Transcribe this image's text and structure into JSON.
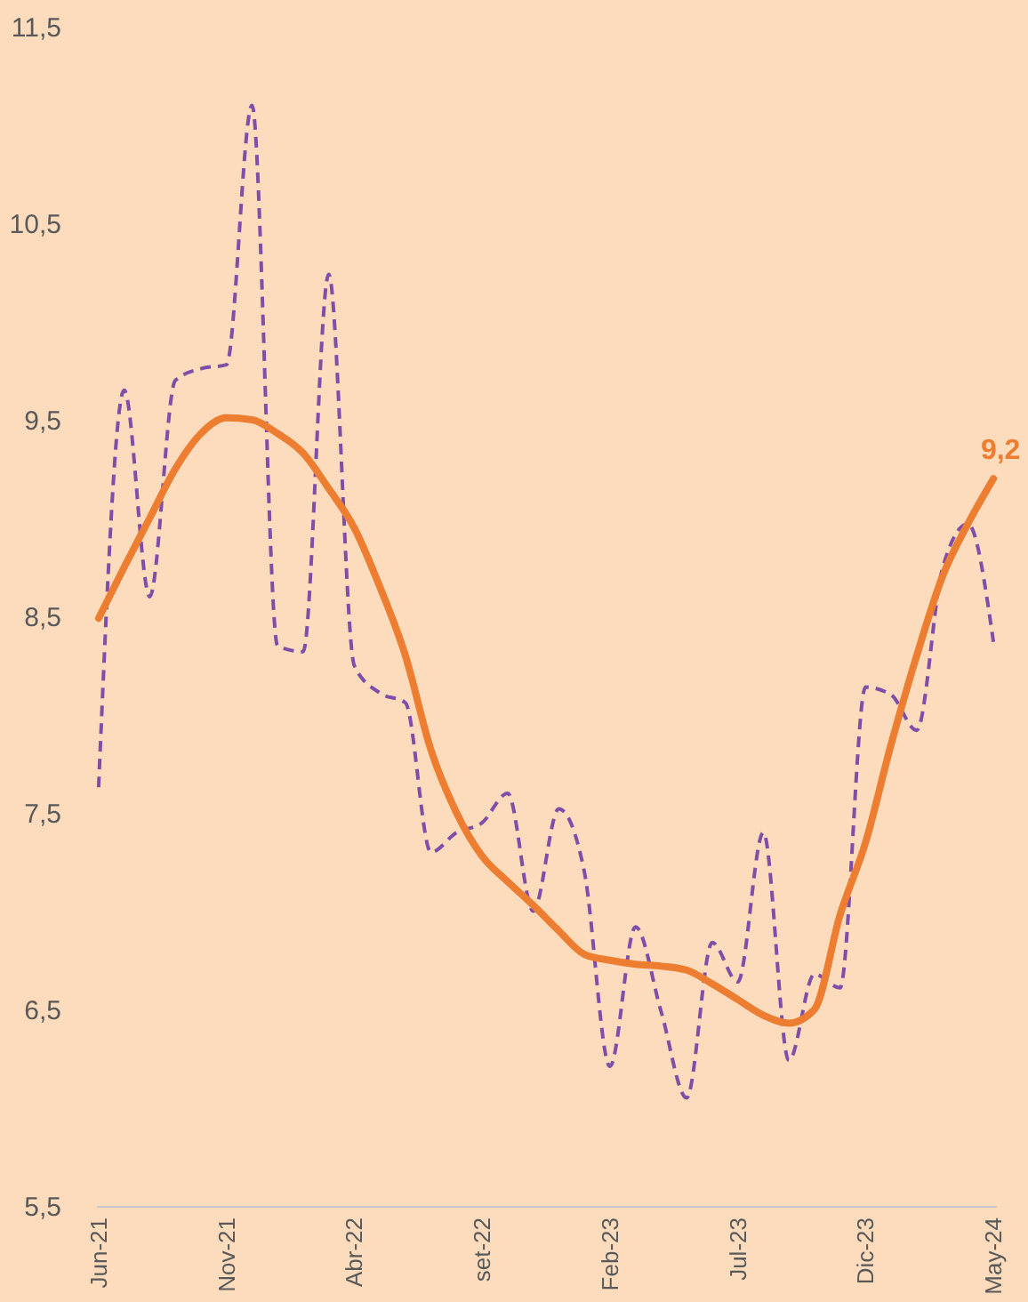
{
  "chart_data": {
    "type": "line",
    "categories": [
      "Jun-21",
      null,
      null,
      null,
      null,
      "Nov-21",
      null,
      null,
      null,
      null,
      "Abr-22",
      null,
      null,
      null,
      null,
      "set-22",
      null,
      null,
      null,
      null,
      "Feb-23",
      null,
      null,
      null,
      null,
      "Jul-23",
      null,
      null,
      null,
      null,
      "Dic-23",
      null,
      null,
      null,
      null,
      "May-24"
    ],
    "series": [
      {
        "color": "#7f4fa8",
        "line_style": "dashed",
        "values": [
          7.63,
          9.65,
          8.6,
          9.7,
          9.76,
          9.78,
          11.1,
          8.35,
          8.32,
          10.24,
          8.25,
          8.11,
          8.06,
          7.3,
          7.4,
          7.45,
          7.6,
          7.0,
          7.52,
          7.2,
          6.21,
          6.92,
          6.49,
          6.05,
          6.84,
          6.64,
          7.4,
          6.24,
          6.68,
          6.61,
          8.14,
          8.1,
          7.92,
          8.74,
          8.97,
          8.37
        ]
      },
      {
        "color": "#ed7d31",
        "line_style": "solid",
        "values": [
          8.49,
          8.75,
          9.0,
          9.25,
          9.43,
          9.51,
          9.5,
          9.43,
          9.33,
          9.15,
          8.95,
          8.65,
          8.3,
          7.82,
          7.5,
          7.28,
          7.15,
          7.03,
          6.9,
          6.78,
          6.75,
          6.73,
          6.72,
          6.7,
          6.63,
          6.55,
          6.47,
          6.43,
          6.5,
          6.98,
          7.35,
          7.85,
          8.3,
          8.7,
          8.97,
          9.2
        ],
        "value_labels": [
          null,
          null,
          null,
          null,
          null,
          null,
          null,
          null,
          null,
          null,
          null,
          null,
          null,
          null,
          null,
          null,
          null,
          null,
          null,
          null,
          null,
          null,
          null,
          null,
          null,
          null,
          null,
          null,
          null,
          null,
          null,
          null,
          null,
          null,
          null,
          "9,2"
        ]
      }
    ],
    "ylim": [
      5.5,
      11.5
    ],
    "yticks": [
      {
        "value": 5.5,
        "label": "5,5"
      },
      {
        "value": 6.5,
        "label": "6,5"
      },
      {
        "value": 7.5,
        "label": "7,5"
      },
      {
        "value": 8.5,
        "label": "8,5"
      },
      {
        "value": 9.5,
        "label": "9,5"
      },
      {
        "value": 10.5,
        "label": "10,5"
      },
      {
        "value": 11.5,
        "label": "11,5"
      }
    ],
    "grid": false,
    "marker": "none"
  }
}
